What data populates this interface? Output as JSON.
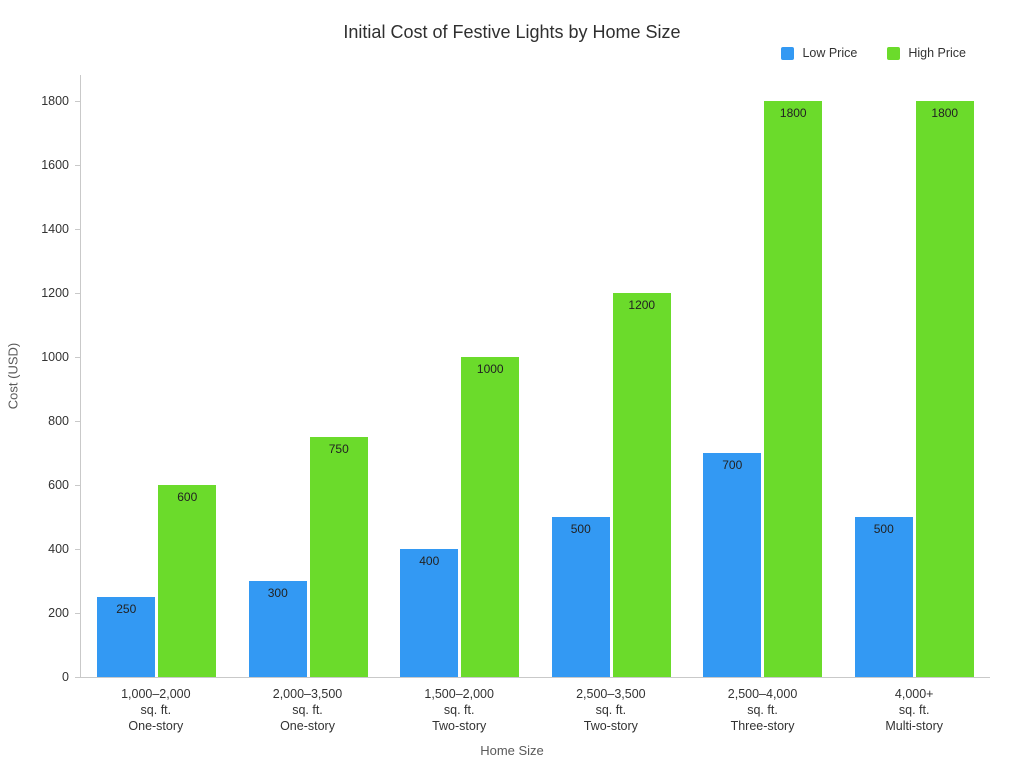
{
  "chart_data": {
    "type": "bar",
    "title": "Initial Cost of Festive Lights by Home Size",
    "xlabel": "Home Size",
    "ylabel": "Cost (USD)",
    "ylim": [
      0,
      1880
    ],
    "yticks": [
      0,
      200,
      400,
      600,
      800,
      1000,
      1200,
      1400,
      1600,
      1800
    ],
    "grid": false,
    "legend_position": "top-right",
    "categories": [
      [
        "1,000–2,000",
        "sq. ft.",
        "One-story"
      ],
      [
        "2,000–3,500",
        "sq. ft.",
        "One-story"
      ],
      [
        "1,500–2,000",
        "sq. ft.",
        "Two-story"
      ],
      [
        "2,500–3,500",
        "sq. ft.",
        "Two-story"
      ],
      [
        "2,500–4,000",
        "sq. ft.",
        "Three-story"
      ],
      [
        "4,000+",
        "sq. ft.",
        "Multi-story"
      ]
    ],
    "series": [
      {
        "name": "Low Price",
        "color": "#3399f3",
        "values": [
          250,
          300,
          400,
          500,
          700,
          500
        ]
      },
      {
        "name": "High Price",
        "color": "#6bdb2b",
        "values": [
          600,
          750,
          1000,
          1200,
          1800,
          1800
        ]
      }
    ]
  }
}
